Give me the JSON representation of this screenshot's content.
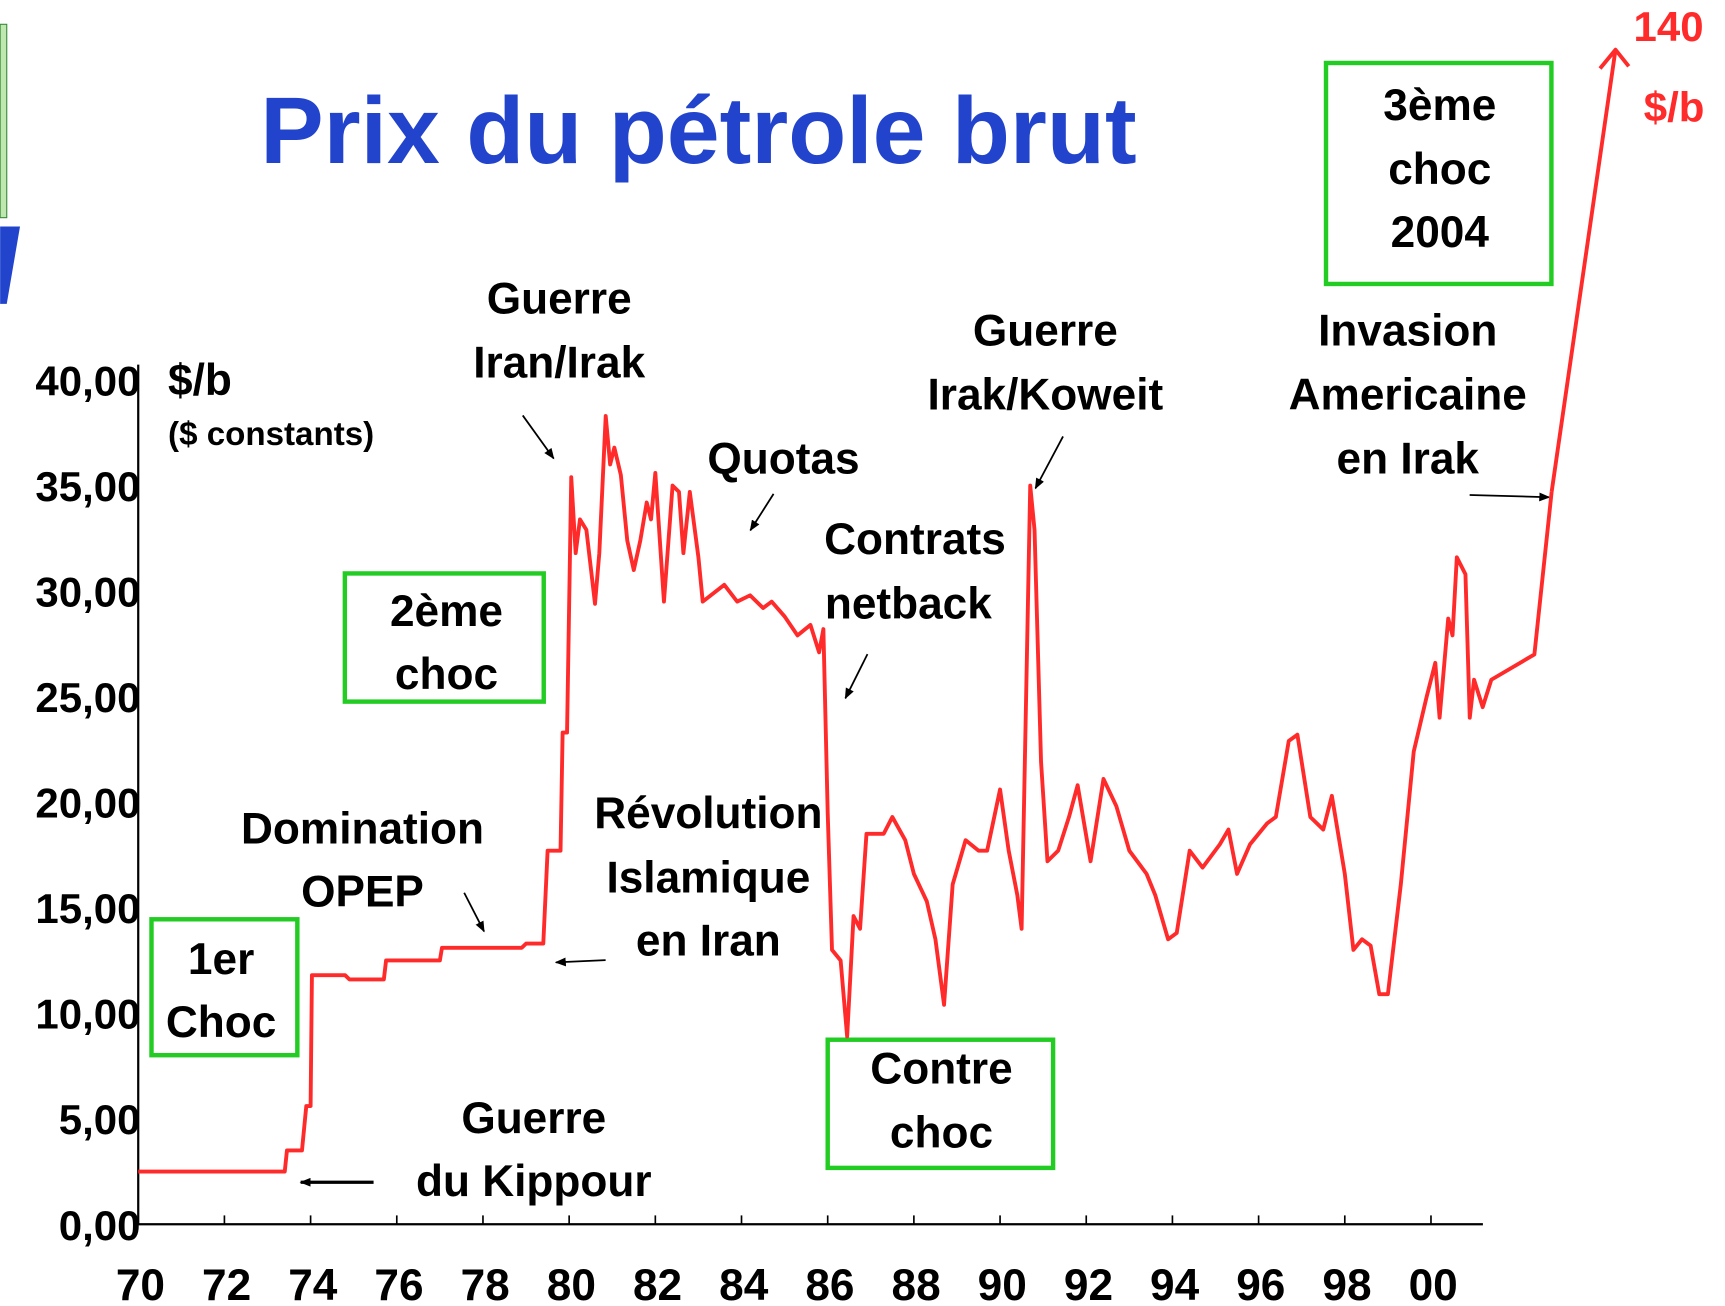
{
  "chart_data": {
    "type": "line",
    "title": "Prix du pétrole brut",
    "y_label": "$/b",
    "y_sublabel": "($ constants)",
    "end_value": 140,
    "end_unit": "$/b",
    "color": "#ff2a2a",
    "xlim": [
      1970,
      2003
    ],
    "ylim": [
      0,
      40
    ],
    "xticks": [
      {
        "value": 1970,
        "label": "70"
      },
      {
        "value": 1972,
        "label": "72"
      },
      {
        "value": 1974,
        "label": "74"
      },
      {
        "value": 1976,
        "label": "76"
      },
      {
        "value": 1978,
        "label": "78"
      },
      {
        "value": 1980,
        "label": "80"
      },
      {
        "value": 1982,
        "label": "82"
      },
      {
        "value": 1984,
        "label": "84"
      },
      {
        "value": 1986,
        "label": "86"
      },
      {
        "value": 1988,
        "label": "88"
      },
      {
        "value": 1990,
        "label": "90"
      },
      {
        "value": 1992,
        "label": "92"
      },
      {
        "value": 1994,
        "label": "94"
      },
      {
        "value": 1996,
        "label": "96"
      },
      {
        "value": 1998,
        "label": "98"
      },
      {
        "value": 2000,
        "label": "00"
      }
    ],
    "yticks": [
      {
        "value": 0,
        "label": "0,00"
      },
      {
        "value": 5,
        "label": "5,00"
      },
      {
        "value": 10,
        "label": "10,00"
      },
      {
        "value": 15,
        "label": "15,00"
      },
      {
        "value": 20,
        "label": "20,00"
      },
      {
        "value": 25,
        "label": "25,00"
      },
      {
        "value": 30,
        "label": "30,00"
      },
      {
        "value": 35,
        "label": "35,00"
      },
      {
        "value": 40,
        "label": "40,00"
      }
    ],
    "x": [
      1970,
      1973.4,
      1973.45,
      1973.8,
      1973.9,
      1974.0,
      1974.03,
      1974.8,
      1974.9,
      1975.7,
      1975.75,
      1977.0,
      1977.05,
      1978.9,
      1979.0,
      1979.4,
      1979.5,
      1979.8,
      1979.85,
      1979.95,
      1980.05,
      1980.15,
      1980.25,
      1980.4,
      1980.6,
      1980.7,
      1980.85,
      1980.95,
      1981.05,
      1981.2,
      1981.35,
      1981.5,
      1981.65,
      1981.8,
      1981.9,
      1982.0,
      1982.2,
      1982.4,
      1982.55,
      1982.65,
      1982.8,
      1983.0,
      1983.1,
      1983.6,
      1983.9,
      1984.2,
      1984.5,
      1984.7,
      1985.0,
      1985.3,
      1985.6,
      1985.8,
      1985.9,
      1986.0,
      1986.1,
      1986.3,
      1986.45,
      1986.6,
      1986.75,
      1986.9,
      1987.3,
      1987.5,
      1987.8,
      1988.0,
      1988.3,
      1988.5,
      1988.7,
      1988.9,
      1989.2,
      1989.5,
      1989.7,
      1990.0,
      1990.2,
      1990.4,
      1990.5,
      1990.7,
      1990.8,
      1990.95,
      1991.1,
      1991.35,
      1991.6,
      1991.8,
      1992.1,
      1992.4,
      1992.7,
      1993.0,
      1993.4,
      1993.6,
      1993.9,
      1994.1,
      1994.4,
      1994.7,
      1995.1,
      1995.3,
      1995.5,
      1995.8,
      1996.2,
      1996.4,
      1996.7,
      1996.9,
      1997.2,
      1997.5,
      1997.7,
      1998.0,
      1998.2,
      1998.4,
      1998.6,
      1998.8,
      1999.0,
      1999.3,
      1999.6,
      1999.9,
      2000.1,
      2000.2,
      2000.4,
      2000.5,
      2000.6,
      2000.8,
      2000.9,
      2001.0,
      2001.2,
      2001.4,
      2002.4,
      2002.8
    ],
    "values": [
      2.5,
      2.5,
      3.5,
      3.5,
      5.6,
      5.6,
      11.8,
      11.8,
      11.6,
      11.6,
      12.5,
      12.5,
      13.1,
      13.1,
      13.3,
      13.3,
      17.7,
      17.7,
      23.3,
      23.3,
      35.4,
      31.8,
      33.4,
      32.9,
      29.4,
      31.8,
      38.3,
      36,
      36.8,
      35.5,
      32.4,
      31,
      32.4,
      34.2,
      33.4,
      35.6,
      29.5,
      35,
      34.7,
      31.8,
      34.7,
      31.6,
      29.5,
      30.3,
      29.5,
      29.8,
      29.2,
      29.5,
      28.8,
      27.9,
      28.4,
      27.1,
      28.2,
      19.5,
      13,
      12.5,
      8.9,
      14.6,
      14,
      18.5,
      18.5,
      19.3,
      18.2,
      16.6,
      15.3,
      13.5,
      10.4,
      16.1,
      18.2,
      17.7,
      17.7,
      20.6,
      17.7,
      15.6,
      14,
      35,
      32.9,
      21.9,
      17.2,
      17.7,
      19.3,
      20.8,
      17.2,
      21.1,
      19.8,
      17.7,
      16.6,
      15.6,
      13.5,
      13.8,
      17.7,
      16.9,
      18,
      18.7,
      16.6,
      18,
      19,
      19.3,
      22.9,
      23.2,
      19.3,
      18.7,
      20.3,
      16.6,
      13,
      13.5,
      13.2,
      10.9,
      10.9,
      16.1,
      22.4,
      25,
      26.6,
      24,
      28.7,
      27.9,
      31.6,
      30.8,
      24,
      25.8,
      24.5,
      25.8,
      27,
      34.7
    ],
    "annotations": [
      {
        "lines": [
          "Guerre",
          "Iran/Irak"
        ]
      },
      {
        "lines": [
          "Quotas"
        ]
      },
      {
        "lines": [
          "Contrats",
          "netback"
        ]
      },
      {
        "lines": [
          "Guerre",
          "Irak/Koweit"
        ]
      },
      {
        "lines": [
          "Invasion",
          "Americaine",
          "en Irak"
        ]
      },
      {
        "lines": [
          "3ème",
          "choc",
          "2004"
        ]
      },
      {
        "lines": [
          "2ème",
          "choc"
        ]
      },
      {
        "lines": [
          "Domination",
          "OPEP"
        ]
      },
      {
        "lines": [
          "Révolution",
          "Islamique",
          "en Iran"
        ]
      },
      {
        "lines": [
          "1er",
          "Choc"
        ]
      },
      {
        "lines": [
          "Contre",
          "choc"
        ]
      },
      {
        "lines": [
          "Guerre",
          "du Kippour"
        ]
      }
    ]
  }
}
